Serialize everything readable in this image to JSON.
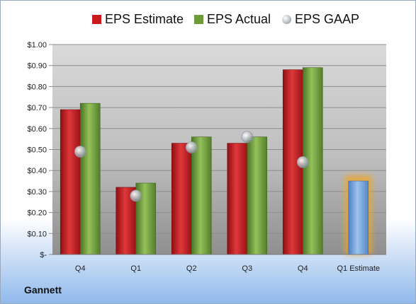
{
  "company": "Gannett",
  "chart_data": {
    "type": "bar",
    "categories": [
      "Q4",
      "Q1",
      "Q2",
      "Q3",
      "Q4",
      "Q1 Estimate"
    ],
    "series": [
      {
        "name": "EPS Estimate",
        "type": "bar",
        "color": "#c8191c",
        "values": [
          0.69,
          0.32,
          0.53,
          0.53,
          0.88,
          null
        ]
      },
      {
        "name": "EPS Actual",
        "type": "bar",
        "color": "#6e9b3a",
        "values": [
          0.72,
          0.34,
          0.56,
          0.56,
          0.89,
          null
        ]
      },
      {
        "name": "EPS GAAP",
        "type": "scatter",
        "color": "#b9c0c8",
        "values": [
          0.49,
          0.28,
          0.51,
          0.56,
          0.44,
          null
        ]
      },
      {
        "name": "",
        "type": "bar",
        "color": "#6f9fd8",
        "highlight": "#f5a623",
        "values": [
          null,
          null,
          null,
          null,
          null,
          0.35
        ]
      }
    ],
    "yticks": [
      "$1.00",
      "$0.90",
      "$0.80",
      "$0.70",
      "$0.60",
      "$0.50",
      "$0.40",
      "$0.30",
      "$0.20",
      "$0.10",
      "$-"
    ],
    "ylim": [
      0,
      1.0
    ],
    "grid": true,
    "legend_position": "top"
  }
}
